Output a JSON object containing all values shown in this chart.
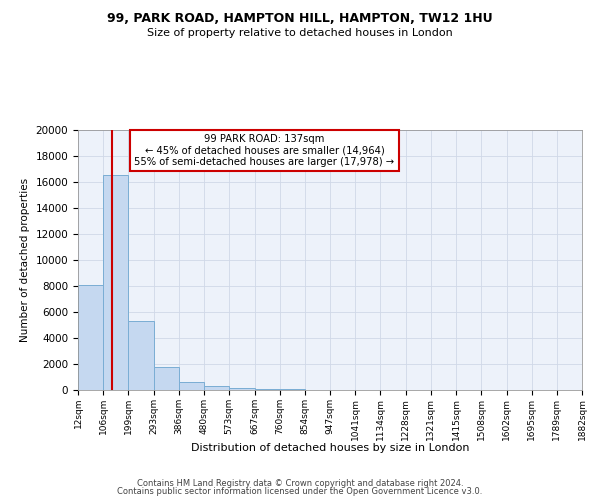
{
  "title1": "99, PARK ROAD, HAMPTON HILL, HAMPTON, TW12 1HU",
  "title2": "Size of property relative to detached houses in London",
  "xlabel": "Distribution of detached houses by size in London",
  "ylabel": "Number of detached properties",
  "bar_values": [
    8100,
    16500,
    5300,
    1800,
    650,
    300,
    150,
    100,
    50,
    0,
    0,
    0,
    0,
    0,
    0,
    0,
    0,
    0,
    0,
    0
  ],
  "bin_labels": [
    "12sqm",
    "106sqm",
    "199sqm",
    "293sqm",
    "386sqm",
    "480sqm",
    "573sqm",
    "667sqm",
    "760sqm",
    "854sqm",
    "947sqm",
    "1041sqm",
    "1134sqm",
    "1228sqm",
    "1321sqm",
    "1415sqm",
    "1508sqm",
    "1602sqm",
    "1695sqm",
    "1789sqm",
    "1882sqm"
  ],
  "bar_color": "#c5d8f0",
  "bar_edge_color": "#7aadd4",
  "bg_color": "#edf2fa",
  "grid_color": "#d0d8e8",
  "vline_x": 137,
  "vline_color": "#cc0000",
  "annotation_box_color": "#cc0000",
  "property_size": "137sqm",
  "pct_smaller": 45,
  "count_smaller": "14,964",
  "pct_larger": 55,
  "count_larger": "17,978",
  "ylim": [
    0,
    20000
  ],
  "yticks": [
    0,
    2000,
    4000,
    6000,
    8000,
    10000,
    12000,
    14000,
    16000,
    18000,
    20000
  ],
  "footer1": "Contains HM Land Registry data © Crown copyright and database right 2024.",
  "footer2": "Contains public sector information licensed under the Open Government Licence v3.0.",
  "bin_edges": [
    12,
    106,
    199,
    293,
    386,
    480,
    573,
    667,
    760,
    854,
    947,
    1041,
    1134,
    1228,
    1321,
    1415,
    1508,
    1602,
    1695,
    1789,
    1882
  ]
}
